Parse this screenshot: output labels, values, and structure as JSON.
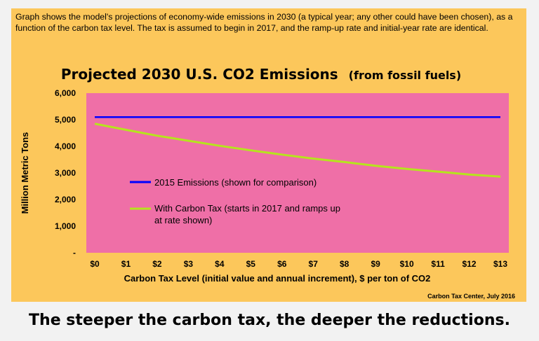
{
  "intro_text": "Graph shows the model's projections of economy-wide emissions in 2030 (a typical year; any other could have been chosen), as a function of the carbon tax level. The tax is assumed to begin in 2017, and the ramp-up rate and initial-year rate are identical.",
  "caption": "The steeper the carbon tax, the deeper the reductions.",
  "colors": {
    "panel": "#fcc75b",
    "plot_area": "#ef6fa7",
    "series_2015": "#0000ff",
    "series_tax": "#b5e51d"
  },
  "chart_data": {
    "type": "line",
    "title": "Projected 2030 U.S. CO2 Emissions",
    "title_suffix": "(from fossil fuels)",
    "xlabel": "Carbon Tax Level (initial value and annual increment), $ per ton of CO2",
    "ylabel": "Million Metric Tons",
    "source": "Carbon Tax Center, July 2016",
    "categories": [
      "$0",
      "$1",
      "$2",
      "$3",
      "$4",
      "$5",
      "$6",
      "$7",
      "$8",
      "$9",
      "$10",
      "$11",
      "$12",
      "$13"
    ],
    "ylim": [
      0,
      6000
    ],
    "yticks": [
      "-",
      "1,000",
      "2,000",
      "3,000",
      "4,000",
      "5,000",
      "6,000"
    ],
    "grid": false,
    "legend_position": "center-left, inside plot",
    "series": [
      {
        "name": "2015 Emissions (shown for comparison)",
        "values": [
          5100,
          5100,
          5100,
          5100,
          5100,
          5100,
          5100,
          5100,
          5100,
          5100,
          5100,
          5100,
          5100,
          5100
        ]
      },
      {
        "name": "With Carbon Tax (starts in 2017 and ramps up at rate shown)",
        "values": [
          4850,
          4620,
          4400,
          4210,
          4020,
          3850,
          3690,
          3540,
          3410,
          3270,
          3150,
          3050,
          2940,
          2860
        ]
      }
    ]
  }
}
